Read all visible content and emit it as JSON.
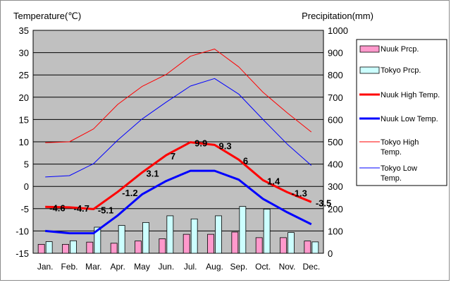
{
  "chart_data": {
    "type": "bar",
    "title": "",
    "ylabel_left": "Temperature(℃)",
    "ylabel_right": "Precipitation(mm)",
    "ylim_left": [
      -15,
      35
    ],
    "ylim_right": [
      0,
      1000
    ],
    "yticks_left": [
      35,
      30,
      25,
      20,
      15,
      10,
      5,
      0,
      -5,
      -10,
      -15
    ],
    "yticks_right": [
      1000,
      900,
      800,
      700,
      600,
      500,
      400,
      300,
      200,
      100,
      0
    ],
    "grid": true,
    "legend_position": "right",
    "categories": [
      "Jan.",
      "Feb.",
      "Mar.",
      "Apr.",
      "May",
      "Jun.",
      "Jul.",
      "Aug.",
      "Sep.",
      "Oct.",
      "Nov.",
      "Dec."
    ],
    "bar_series": [
      {
        "name": "Nuuk Prcp.",
        "axis": "right",
        "color": "#ff99cc",
        "values": [
          40,
          40,
          50,
          45,
          55,
          65,
          85,
          85,
          95,
          70,
          70,
          55
        ]
      },
      {
        "name": "Tokyo Prcp.",
        "axis": "right",
        "color": "#ccffff",
        "values": [
          52,
          56,
          117,
          125,
          138,
          168,
          154,
          168,
          210,
          198,
          93,
          51
        ]
      }
    ],
    "line_series": [
      {
        "name": "Nuuk High Temp.",
        "axis": "left",
        "color": "#ff0000",
        "width": 3,
        "values": [
          -4.6,
          -4.7,
          -5.1,
          -1.2,
          3.1,
          7,
          9.9,
          9.3,
          6,
          1.4,
          -1.3,
          -3.5
        ],
        "labels": [
          "-4.6",
          "-4.7",
          "-5.1",
          "-1.2",
          "3.1",
          "7",
          "9.9",
          "9.3",
          "6",
          "1.4",
          "-1.3",
          "-3.5"
        ]
      },
      {
        "name": "Nuuk Low Temp.",
        "axis": "left",
        "color": "#0000ff",
        "width": 3,
        "values": [
          -10,
          -10.5,
          -10.5,
          -6.5,
          -1.8,
          1.2,
          3.5,
          3.5,
          1.5,
          -2.8,
          -5.8,
          -8.5
        ]
      },
      {
        "name": "Tokyo High Temp.",
        "axis": "left",
        "color": "#ff0000",
        "width": 1,
        "values": [
          9.8,
          10,
          12.9,
          18.4,
          22.4,
          25.1,
          29.2,
          30.8,
          26.8,
          21.1,
          16.5,
          12.2
        ]
      },
      {
        "name": "Tokyo Low Temp.",
        "axis": "left",
        "color": "#0000ff",
        "width": 1,
        "values": [
          2.1,
          2.4,
          5.1,
          10.4,
          15.1,
          18.9,
          22.5,
          24.2,
          20.7,
          15,
          9.5,
          4.7
        ]
      }
    ],
    "legend": [
      {
        "label": "Nuuk Prcp.",
        "kind": "bar",
        "color": "#ff99cc"
      },
      {
        "label": "Tokyo Prcp.",
        "kind": "bar",
        "color": "#ccffff"
      },
      {
        "label": "Nuuk High Temp.",
        "kind": "line",
        "color": "#ff0000",
        "width": 3
      },
      {
        "label": "Nuuk Low Temp.",
        "kind": "line",
        "color": "#0000ff",
        "width": 3
      },
      {
        "label": "Tokyo High Temp.",
        "kind": "line",
        "color": "#ff0000",
        "width": 1
      },
      {
        "label": "Tokyo Low Temp.",
        "kind": "line",
        "color": "#0000ff",
        "width": 1
      }
    ]
  }
}
